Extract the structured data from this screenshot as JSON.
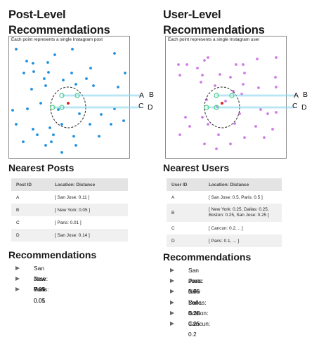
{
  "left": {
    "title": "Post-Level\nRecommendations",
    "caption": "Each point represents a single Instagram post",
    "point_color": "#1e90e0",
    "table_heading": "Nearest Posts",
    "table_headers": [
      "Post ID",
      "Location: Distance"
    ],
    "rows": [
      {
        "id": "A",
        "value": "[ San Jose: 0.11 ]"
      },
      {
        "id": "B",
        "value": "[ New York: 0.05 ]"
      },
      {
        "id": "C",
        "value": "[ Paris: 0.01 ]"
      },
      {
        "id": "D",
        "value": "[ San Jose: 0.14 ]"
      }
    ],
    "rec_heading": "Recommendations",
    "recs": [
      "San Jose: 0.25",
      "New York: 0.05",
      "Paris: 0.01"
    ],
    "line_labels": {
      "a": "A",
      "b": "B",
      "c": "C",
      "d": "D"
    }
  },
  "right": {
    "title": "User-Level\nRecommendations",
    "caption": "Each point represents a single Instagram user",
    "point_color": "#d07ae8",
    "table_heading": "Nearest Users",
    "table_headers": [
      "User ID",
      "Location: Distance"
    ],
    "rows": [
      {
        "id": "A",
        "value": "[ San Jose: 0.5, Paris: 0.5 ]"
      },
      {
        "id": "B",
        "value": "[ New York: 0.25, Dallas: 0.25,\nBoston: 0.25, San Jose: 0.25 ]"
      },
      {
        "id": "C",
        "value": "[ Cancun: 0.2, .. ]"
      },
      {
        "id": "D",
        "value": "[ Paris: 0.1, ... ]"
      }
    ],
    "rec_heading": "Recommendations",
    "recs": [
      "San Jose: 0.75",
      "Paris: 0.6",
      "New York: 0.25",
      "Dallas: 0.25",
      "Boston: 0.25",
      "Cancun: 0.2"
    ],
    "line_labels": {
      "a": "A",
      "b": "B",
      "c": "C",
      "d": "D"
    }
  },
  "colors": {
    "query_point": "#e02020",
    "neighbor_point": "#4ccf86",
    "connector": "#8fd6ef",
    "circle": "#222222"
  }
}
